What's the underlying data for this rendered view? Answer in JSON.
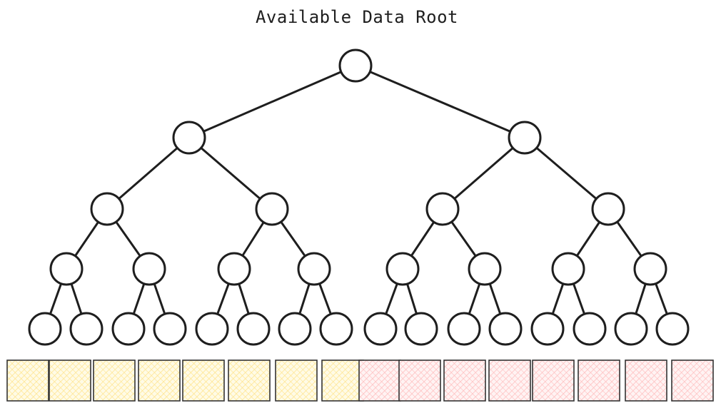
{
  "title": "Available Data Root",
  "tree": {
    "depth": 5,
    "stroke_color": "#1e1e1e",
    "node_fill": "#ffffff"
  },
  "leaf_boxes": [
    {
      "state": "available"
    },
    {
      "state": "available"
    },
    {
      "state": "available"
    },
    {
      "state": "available"
    },
    {
      "state": "available"
    },
    {
      "state": "available"
    },
    {
      "state": "available"
    },
    {
      "state": "available"
    },
    {
      "state": "unavailable"
    },
    {
      "state": "unavailable"
    },
    {
      "state": "unavailable"
    },
    {
      "state": "unavailable"
    },
    {
      "state": "unavailable"
    },
    {
      "state": "unavailable"
    },
    {
      "state": "unavailable"
    },
    {
      "state": "unavailable"
    }
  ],
  "colors": {
    "available": "#ffec99",
    "unavailable": "#ffc9c9"
  }
}
